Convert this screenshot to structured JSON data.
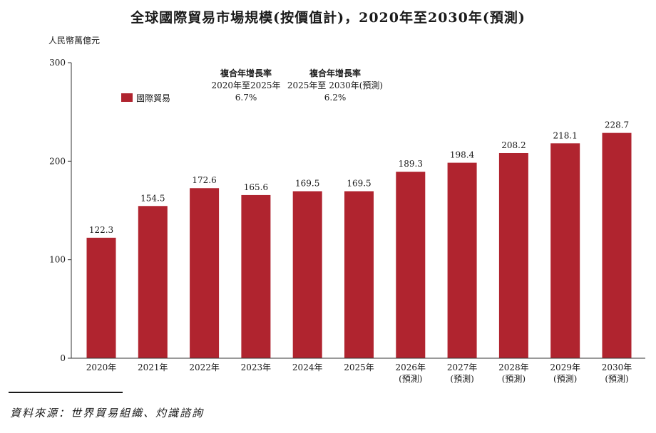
{
  "chart_data": {
    "type": "bar",
    "title": "全球國際貿易市場規模(按價值計)，2020年至2030年(預測)",
    "ylabel": "人民幣萬億元",
    "ylim": [
      0,
      300
    ],
    "yticks": [
      "0",
      "100",
      "200",
      "300"
    ],
    "categories": [
      [
        "2020年"
      ],
      [
        "2021年"
      ],
      [
        "2022年"
      ],
      [
        "2023年"
      ],
      [
        "2024年"
      ],
      [
        "2025年"
      ],
      [
        "2026年",
        "(預測)"
      ],
      [
        "2027年",
        "(預測)"
      ],
      [
        "2028年",
        "(預測)"
      ],
      [
        "2029年",
        "(預測)"
      ],
      [
        "2030年",
        "(預測)"
      ]
    ],
    "series": [
      {
        "name": "國際貿易",
        "color": "#b0242f",
        "values": [
          122.3,
          154.5,
          172.6,
          165.6,
          169.5,
          169.5,
          189.3,
          198.4,
          208.2,
          218.1,
          228.7
        ],
        "labels": [
          "122.3",
          "154.5",
          "172.6",
          "165.6",
          "169.5",
          "169.5",
          "189.3",
          "198.4",
          "208.2",
          "218.1",
          "228.7"
        ]
      }
    ],
    "legend": "top-left",
    "grid": false,
    "annotations": [
      {
        "heading": "複合年增長率",
        "period": "2020年至2025年",
        "value": "6.7%"
      },
      {
        "heading": "複合年增長率",
        "period": "2025年至 2030年(預測)",
        "value": "6.2%"
      }
    ]
  },
  "source": "資料來源：世界貿易組織、灼識諮詢"
}
